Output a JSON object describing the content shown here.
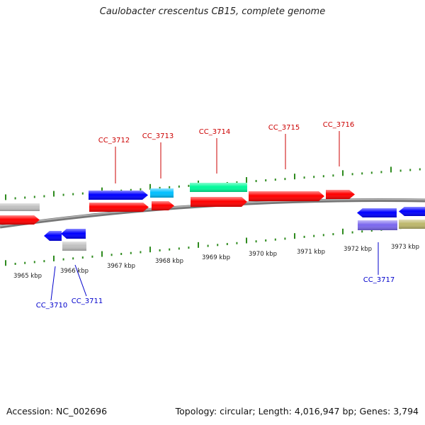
{
  "title": "Caulobacter crescentus CB15, complete genome",
  "footer": {
    "accession": "Accession: NC_002696",
    "summary": "Topology: circular; Length: 4,016,947 bp; Genes: 3,794"
  },
  "colors": {
    "backbone": "#8a8a8a",
    "tick": "#2e8b1e",
    "plus_label": "#cc0000",
    "minus_label": "#0000cc"
  },
  "ruler": {
    "labels": [
      "3965 kbp",
      "3966 kbp",
      "3967 kbp",
      "3968 kbp",
      "3969 kbp",
      "3970 kbp",
      "3971 kbp",
      "3972 kbp",
      "3973 kbp"
    ]
  },
  "plus_strand_labels": [
    "CC_3712",
    "CC_3713",
    "CC_3714",
    "CC_3715",
    "CC_3716"
  ],
  "minus_strand_labels": [
    "CC_3710",
    "CC_3711",
    "CC_3717"
  ],
  "features": [
    {
      "strand": "+",
      "color": "#c0c0c0"
    },
    {
      "strand": "+",
      "color": "#ff0000"
    },
    {
      "strand": "+",
      "color": "#0000ff"
    },
    {
      "strand": "+",
      "color": "#ff0000"
    },
    {
      "strand": "+",
      "color": "#00bfff"
    },
    {
      "strand": "+",
      "color": "#ff0000"
    },
    {
      "strand": "+",
      "color": "#00fa9a"
    },
    {
      "strand": "+",
      "color": "#ff0000"
    },
    {
      "strand": "+",
      "color": "#ff0000"
    },
    {
      "strand": "+",
      "color": "#ff0000"
    },
    {
      "strand": "-",
      "color": "#0000ff"
    },
    {
      "strand": "-",
      "color": "#0000ff"
    },
    {
      "strand": "-",
      "color": "#c0c0c0"
    },
    {
      "strand": "-",
      "color": "#0000ff"
    },
    {
      "strand": "-",
      "color": "#7b68ee"
    },
    {
      "strand": "-",
      "color": "#0000ff"
    },
    {
      "strand": "-",
      "color": "#bdb76b"
    }
  ]
}
